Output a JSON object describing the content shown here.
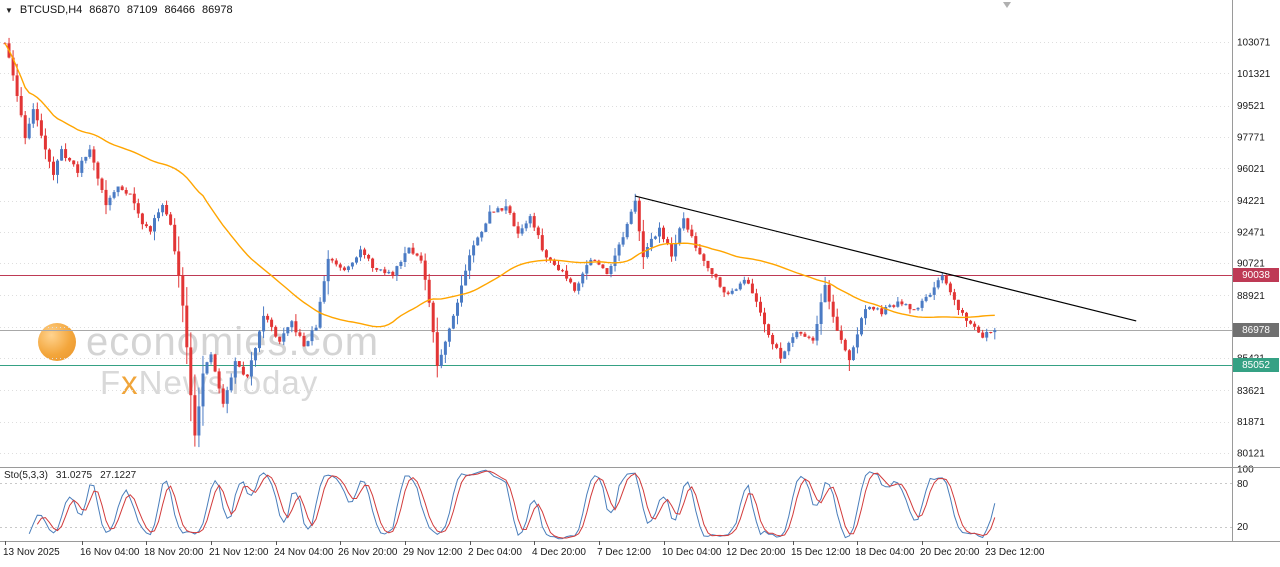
{
  "header": {
    "dropdown_icon": "▼",
    "symbol": "BTCUSD,H4",
    "open": "86870",
    "high": "87109",
    "low": "86466",
    "close": "86978"
  },
  "watermark": {
    "line1": "economies.com",
    "line2_prefix": "F",
    "line2_x": "x",
    "line2_suffix": "NewsToday"
  },
  "y_axis": {
    "values": [
      103071,
      101321,
      99521,
      97771,
      96021,
      94221,
      92471,
      90721,
      88921,
      87171,
      85421,
      83621,
      81871,
      80121
    ]
  },
  "x_axis": {
    "labels": [
      {
        "i": 0,
        "t": "13 Nov 2025"
      },
      {
        "i": 19,
        "t": "16 Nov 04:00"
      },
      {
        "i": 35,
        "t": "18 Nov 20:00"
      },
      {
        "i": 51,
        "t": "21 Nov 12:00"
      },
      {
        "i": 67,
        "t": "24 Nov 04:00"
      },
      {
        "i": 83,
        "t": "26 Nov 20:00"
      },
      {
        "i": 99,
        "t": "29 Nov 12:00"
      },
      {
        "i": 115,
        "t": "2 Dec 04:00"
      },
      {
        "i": 131,
        "t": "4 Dec 20:00"
      },
      {
        "i": 147,
        "t": "7 Dec 12:00"
      },
      {
        "i": 163,
        "t": "10 Dec 04:00"
      },
      {
        "i": 179,
        "t": "12 Dec 20:00"
      },
      {
        "i": 195,
        "t": "15 Dec 12:00"
      },
      {
        "i": 211,
        "t": "18 Dec 04:00"
      },
      {
        "i": 227,
        "t": "20 Dec 20:00"
      },
      {
        "i": 243,
        "t": "23 Dec 12:00"
      }
    ]
  },
  "levels": {
    "resistance": {
      "price": 90038,
      "label": "90038"
    },
    "current": {
      "price": 86978,
      "label": "86978"
    },
    "support": {
      "price": 85052,
      "label": "85052"
    }
  },
  "trendline": {
    "from_index": 156,
    "from_price": 94470,
    "to_index": 280,
    "to_price": 87500
  },
  "sto_panel": {
    "title": "Sto(5,3,3)",
    "main_value": "31.0275",
    "signal_value": "27.1227",
    "axis_ticks": [
      100,
      80,
      20
    ],
    "level_lines": [
      80,
      20
    ]
  },
  "colors": {
    "bull": "#4B7BC4",
    "bear": "#E23535",
    "ma": "#FFA500",
    "resistance": "#BE3A55",
    "support": "#35A184",
    "current_line": "#A8A8A8",
    "current_tag": "#707070",
    "grid": "#DEDEDE",
    "separator": "#9A9A9A",
    "trendline": "#000000",
    "sto_main": "#4A7EBB",
    "sto_signal": "#D23B3B",
    "watermark_text": "#D4D4D4",
    "watermark_accent": "#F0A53A"
  },
  "chart_data": {
    "type": "candlestick",
    "symbol": "BTCUSD",
    "timeframe": "H4",
    "title": "BTCUSD,H4",
    "candle_count": 246,
    "ylim": [
      79340,
      105420
    ],
    "grid": "horizontal-dotted",
    "legend": "none",
    "last_candle": {
      "open": 86870,
      "high": 87109,
      "low": 86466,
      "close": 86978
    },
    "price_path": [
      [
        0,
        103000
      ],
      [
        2,
        101200
      ],
      [
        5,
        97800
      ],
      [
        7,
        99300
      ],
      [
        10,
        97200
      ],
      [
        12,
        95700
      ],
      [
        14,
        97000
      ],
      [
        18,
        95900
      ],
      [
        21,
        97100
      ],
      [
        25,
        94000
      ],
      [
        28,
        95000
      ],
      [
        31,
        94600
      ],
      [
        34,
        92900
      ],
      [
        36,
        92600
      ],
      [
        39,
        94100
      ],
      [
        41,
        92800
      ],
      [
        44,
        88500
      ],
      [
        46,
        83500
      ],
      [
        47,
        81200
      ],
      [
        49,
        84500
      ],
      [
        51,
        85600
      ],
      [
        54,
        82800
      ],
      [
        57,
        85200
      ],
      [
        60,
        84300
      ],
      [
        64,
        87900
      ],
      [
        68,
        86300
      ],
      [
        71,
        87400
      ],
      [
        74,
        86100
      ],
      [
        77,
        87200
      ],
      [
        80,
        91000
      ],
      [
        84,
        90400
      ],
      [
        88,
        91400
      ],
      [
        92,
        90300
      ],
      [
        96,
        90100
      ],
      [
        100,
        91700
      ],
      [
        103,
        90800
      ],
      [
        105,
        88500
      ],
      [
        107,
        85000
      ],
      [
        111,
        87800
      ],
      [
        115,
        91200
      ],
      [
        120,
        93500
      ],
      [
        124,
        93900
      ],
      [
        127,
        92400
      ],
      [
        130,
        93300
      ],
      [
        134,
        91000
      ],
      [
        138,
        90300
      ],
      [
        141,
        89300
      ],
      [
        145,
        91000
      ],
      [
        149,
        90200
      ],
      [
        153,
        92200
      ],
      [
        156,
        94100
      ],
      [
        158,
        91200
      ],
      [
        162,
        92700
      ],
      [
        165,
        91200
      ],
      [
        168,
        93200
      ],
      [
        171,
        91600
      ],
      [
        175,
        90200
      ],
      [
        179,
        88900
      ],
      [
        183,
        89900
      ],
      [
        186,
        88600
      ],
      [
        190,
        86200
      ],
      [
        192,
        85500
      ],
      [
        196,
        87000
      ],
      [
        200,
        86400
      ],
      [
        203,
        89500
      ],
      [
        206,
        86900
      ],
      [
        209,
        85300
      ],
      [
        213,
        88300
      ],
      [
        217,
        88000
      ],
      [
        221,
        88500
      ],
      [
        225,
        88100
      ],
      [
        228,
        88800
      ],
      [
        232,
        89900
      ],
      [
        236,
        88200
      ],
      [
        239,
        87300
      ],
      [
        242,
        86700
      ],
      [
        245,
        86978
      ]
    ],
    "extremes": [
      {
        "i": 1,
        "high": 103250
      },
      {
        "i": 46,
        "low": 81900
      },
      {
        "i": 47,
        "low": 80480
      },
      {
        "i": 80,
        "high": 91450
      },
      {
        "i": 107,
        "low": 84420
      },
      {
        "i": 124,
        "high": 94300
      },
      {
        "i": 156,
        "high": 94470
      },
      {
        "i": 192,
        "low": 85150
      },
      {
        "i": 203,
        "high": 89950
      },
      {
        "i": 209,
        "low": 84700
      },
      {
        "i": 232,
        "high": 90180
      }
    ],
    "moving_average": {
      "type": "SMA",
      "period": 50
    },
    "stochastic": {
      "k": 5,
      "slowing": 3,
      "d": 3,
      "range": [
        0,
        100
      ]
    }
  }
}
